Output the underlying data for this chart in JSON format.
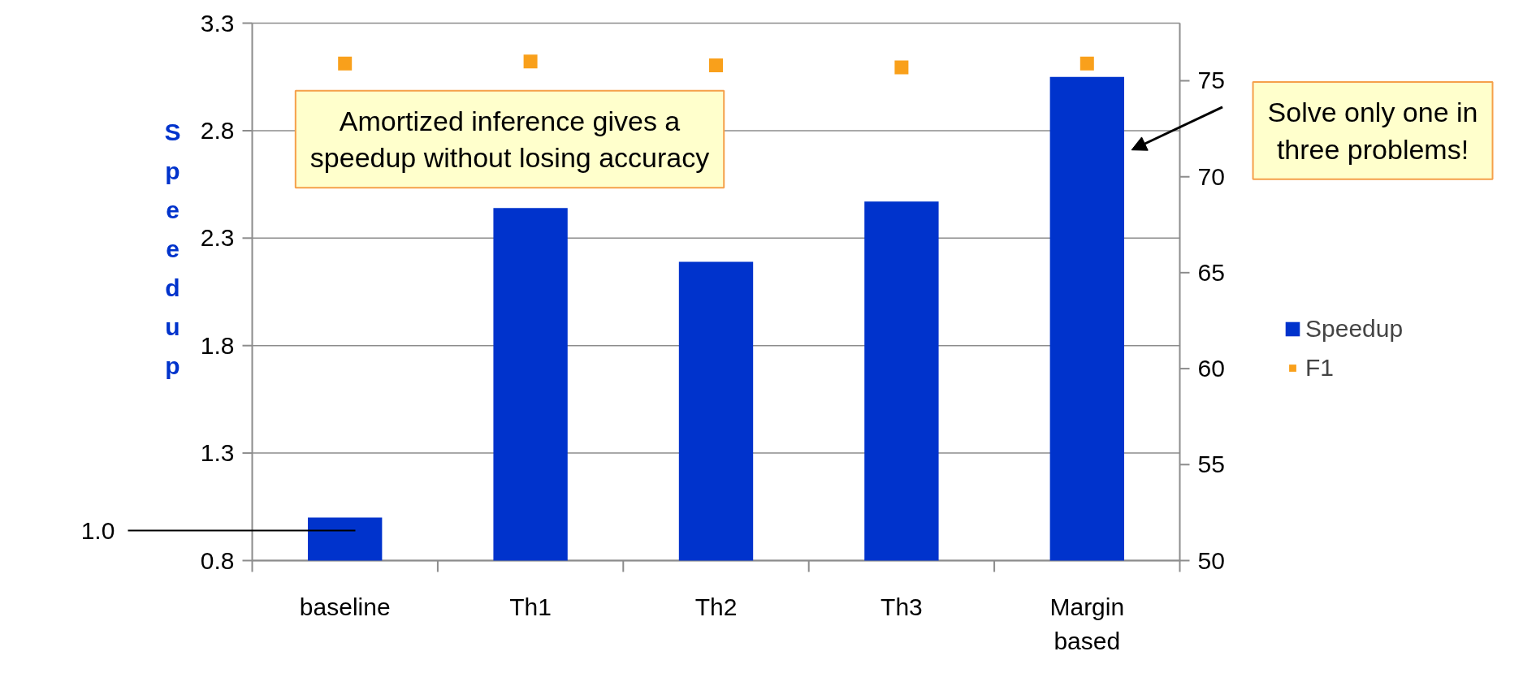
{
  "chart_data": {
    "type": "bar",
    "ylabel": "Speedup",
    "categories": [
      "baseline",
      "Th1",
      "Th2",
      "Th3",
      "Margin based"
    ],
    "series": [
      {
        "name": "Speedup",
        "color": "#0033cc",
        "values": [
          1.0,
          2.44,
          2.19,
          2.47,
          3.05
        ]
      },
      {
        "name": "F1",
        "type": "scatter",
        "axis": "y2",
        "color": "#f9a01b",
        "values": [
          75.9,
          76.0,
          75.8,
          75.7,
          75.9
        ]
      }
    ],
    "ylim": [
      0.8,
      3.3
    ],
    "yticks": [
      0.8,
      1.3,
      1.8,
      2.3,
      2.8,
      3.3
    ],
    "y2lim": [
      50,
      78
    ],
    "y2ticks": [
      50,
      55,
      60,
      65,
      70,
      75
    ],
    "grid": "y",
    "legend": "right",
    "marker": "square",
    "annotations": [
      "1.0",
      "Amortized inference gives a speedup without losing accuracy",
      "Solve only one in three problems!"
    ]
  }
}
